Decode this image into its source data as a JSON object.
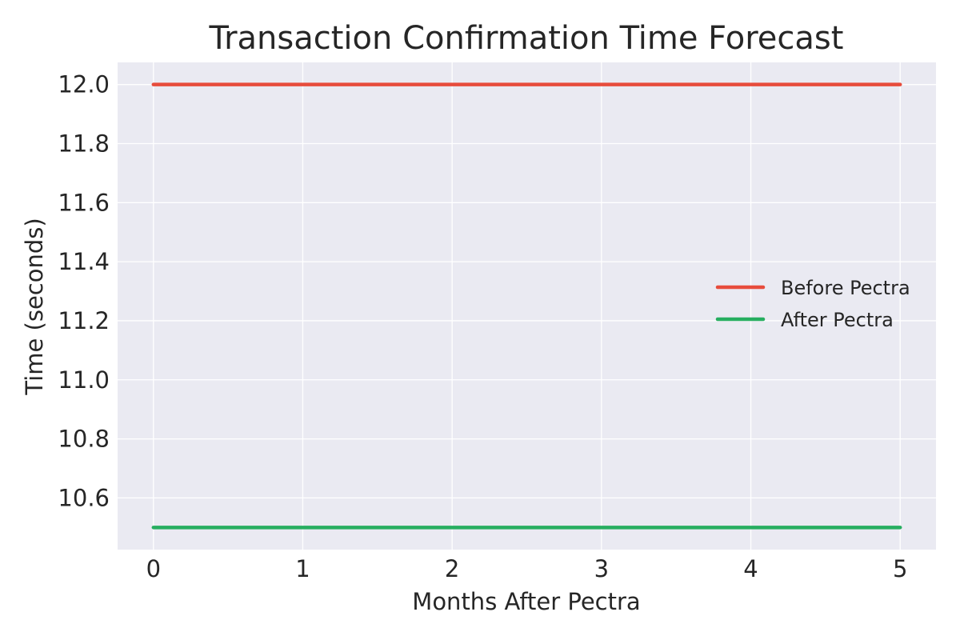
{
  "chart_data": {
    "type": "line",
    "title": "Transaction Confirmation Time Forecast",
    "xlabel": "Months After Pectra",
    "ylabel": "Time (seconds)",
    "x": [
      0,
      1,
      2,
      3,
      4,
      5
    ],
    "x_tick_labels": [
      "0",
      "1",
      "2",
      "3",
      "4",
      "5"
    ],
    "xlim": [
      -0.24,
      5.24
    ],
    "y_ticks": [
      10.6,
      10.8,
      11.0,
      11.2,
      11.4,
      11.6,
      11.8,
      12.0
    ],
    "y_tick_labels": [
      "10.6",
      "10.8",
      "11.0",
      "11.2",
      "11.4",
      "11.6",
      "11.8",
      "12.0"
    ],
    "ylim": [
      10.425,
      12.075
    ],
    "grid": true,
    "legend_position": "center-right",
    "background_color": "#EAEAF2",
    "grid_color": "#FFFFFF",
    "series": [
      {
        "name": "Before Pectra",
        "values": [
          12.0,
          12.0,
          12.0,
          12.0,
          12.0,
          12.0
        ],
        "color": "#E74C3C"
      },
      {
        "name": "After Pectra",
        "values": [
          10.5,
          10.5,
          10.5,
          10.5,
          10.5,
          10.5
        ],
        "color": "#27AE60"
      }
    ]
  }
}
